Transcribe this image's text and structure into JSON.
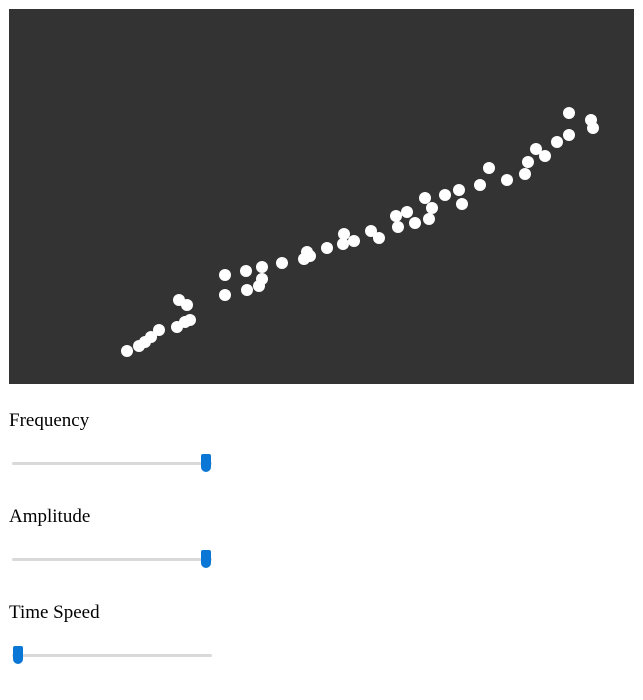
{
  "visualization": {
    "background_color": "#333333",
    "dot_color": "#ffffff"
  },
  "controls": [
    {
      "label": "Frequency",
      "value_fraction": 0.97,
      "accent_color": "#0a76d6"
    },
    {
      "label": "Amplitude",
      "value_fraction": 0.97,
      "accent_color": "#0a76d6"
    },
    {
      "label": "Time Speed",
      "value_fraction": 0.03,
      "accent_color": "#0a76d6"
    }
  ]
}
